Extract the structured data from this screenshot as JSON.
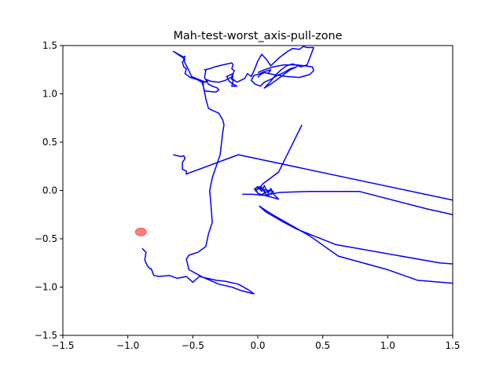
{
  "chart_data": {
    "type": "line",
    "title": "Mah-test-worst_axis-pull-zone",
    "xlabel": "",
    "ylabel": "",
    "xlim": [
      -1.5,
      1.5
    ],
    "ylim": [
      -1.5,
      1.5
    ],
    "xticks": [
      "−1.5",
      "−1.0",
      "−0.5",
      "0.0",
      "0.5",
      "1.0",
      "1.5"
    ],
    "yticks": [
      "−1.5",
      "−1.0",
      "−0.5",
      "0.0",
      "0.5",
      "1.0",
      "1.5"
    ],
    "xtick_values": [
      -1.5,
      -1.0,
      -0.5,
      0.0,
      0.5,
      1.0,
      1.5
    ],
    "ytick_values": [
      -1.5,
      -1.0,
      -0.5,
      0.0,
      0.5,
      1.0,
      1.5
    ],
    "grid": false,
    "series": [
      {
        "color": "#0000ff",
        "x": [
          -0.89,
          -0.86,
          -0.87,
          -0.85,
          -0.83,
          -0.82,
          -0.8,
          -0.76,
          -0.68,
          -0.62,
          -0.55,
          -0.5,
          -0.45,
          -0.32,
          -0.25,
          -0.15,
          -0.07,
          -0.03,
          -0.12,
          -0.2,
          -0.3,
          -0.42,
          -0.53,
          -0.55,
          -0.53,
          -0.46,
          -0.4,
          -0.38,
          -0.35,
          -0.36,
          -0.37,
          -0.35,
          -0.29,
          -0.27,
          -0.26,
          -0.27,
          -0.3,
          -0.35,
          -0.38,
          -0.4,
          -0.42,
          -0.43,
          -0.47,
          -0.52,
          -0.56,
          -0.55,
          -0.57,
          -0.58,
          -0.56,
          -0.65,
          -0.57,
          -0.56,
          -0.57,
          -0.56,
          -0.53,
          -0.51,
          -0.42,
          -0.41,
          -0.38,
          -0.4,
          -0.42,
          -0.42,
          -0.41,
          -0.34,
          -0.32,
          -0.3,
          -0.31,
          -0.35,
          -0.38,
          -0.41,
          -0.4,
          -0.41,
          -0.37,
          -0.33,
          -0.27,
          -0.2,
          -0.19,
          -0.2,
          -0.18,
          -0.19,
          -0.24,
          -0.23,
          -0.22,
          -0.19,
          -0.16,
          -0.2,
          -0.19,
          -0.2,
          -0.19,
          -0.2,
          -0.19,
          -0.19
        ],
        "y": [
          -0.6,
          -0.64,
          -0.72,
          -0.78,
          -0.81,
          -0.81,
          -0.88,
          -0.89,
          -0.88,
          -0.91,
          -0.89,
          -0.95,
          -0.89,
          -0.93,
          -0.94,
          -0.97,
          -1.03,
          -1.07,
          -1.04,
          -1.0,
          -0.97,
          -0.9,
          -0.82,
          -0.71,
          -0.67,
          -0.64,
          -0.58,
          -0.45,
          -0.33,
          -0.16,
          0.0,
          0.13,
          0.37,
          0.6,
          0.68,
          0.73,
          0.8,
          0.83,
          0.85,
          0.95,
          1.08,
          1.12,
          1.15,
          1.17,
          1.21,
          1.26,
          1.28,
          1.33,
          1.36,
          1.44,
          1.38,
          1.39,
          1.36,
          1.32,
          1.24,
          1.18,
          1.13,
          1.12,
          1.14,
          1.12,
          1.13,
          1.08,
          1.03,
          1.02,
          1.02,
          1.04,
          1.06,
          1.08,
          1.1,
          1.17,
          1.24,
          1.25,
          1.26,
          1.28,
          1.3,
          1.32,
          1.3,
          1.26,
          1.24,
          1.21,
          1.18,
          1.16,
          1.13,
          1.1,
          1.08,
          1.08,
          1.13,
          1.18,
          1.21,
          1.15,
          1.18,
          1.18
        ]
      },
      {
        "color": "#0000ff",
        "x": [
          -0.65,
          -0.59,
          -0.57,
          -0.56,
          -0.58,
          -0.58,
          -0.55,
          -0.55,
          -0.15,
          1.5
        ],
        "y": [
          0.37,
          0.35,
          0.36,
          0.33,
          0.29,
          0.22,
          0.2,
          0.17,
          0.37,
          -0.1
        ]
      },
      {
        "color": "#0000ff",
        "x": [
          -0.12,
          -0.04,
          0.05,
          0.17,
          0.4,
          0.78,
          1.3,
          1.5
        ],
        "y": [
          -0.04,
          -0.04,
          -0.05,
          -0.02,
          -0.01,
          -0.01,
          -0.19,
          -0.25
        ]
      },
      {
        "color": "#0000ff",
        "x": [
          0.01,
          0.04,
          0.16,
          0.34
        ],
        "y": [
          0.02,
          0.07,
          0.19,
          0.68
        ]
      },
      {
        "color": "#0000ff",
        "x": [
          -0.03,
          0.0,
          0.03,
          0.05,
          0.08,
          0.1,
          0.13,
          0.16,
          0.0,
          -0.02,
          0.02,
          0.06,
          0.1,
          0.02,
          -0.02,
          0.03,
          0.07,
          0.12,
          0.0
        ],
        "y": [
          0.01,
          0.04,
          -0.01,
          0.05,
          -0.03,
          0.02,
          -0.05,
          -0.09,
          -0.03,
          0.02,
          0.04,
          -0.02,
          0.01,
          -0.05,
          0.0,
          0.03,
          -0.06,
          -0.01,
          0.02
        ]
      },
      {
        "color": "#0000ff",
        "x": [
          0.01,
          0.06,
          0.2,
          0.3,
          0.6,
          1.4,
          1.5
        ],
        "y": [
          -0.16,
          -0.22,
          -0.33,
          -0.4,
          -0.56,
          -0.75,
          -0.76
        ]
      },
      {
        "color": "#0000ff",
        "x": [
          0.01,
          0.1,
          0.4,
          0.62,
          1.0,
          1.23,
          1.5
        ],
        "y": [
          -0.16,
          -0.24,
          -0.47,
          -0.68,
          -0.82,
          -0.93,
          -0.96
        ]
      },
      {
        "color": "#0000ff",
        "x": [
          -0.4,
          -0.36,
          -0.3,
          -0.25,
          -0.21,
          -0.16,
          -0.1,
          -0.08,
          -0.05,
          -0.02,
          0.0,
          0.03,
          0.07,
          0.1,
          0.13,
          0.17,
          0.2,
          0.23,
          0.27,
          0.32,
          0.35,
          0.38,
          0.43,
          0.38,
          0.33,
          0.27,
          0.22,
          0.18,
          0.14,
          0.1,
          0.05,
          0.1,
          0.15,
          0.2,
          0.25,
          0.3,
          0.25,
          0.2,
          0.15,
          0.1,
          0.05,
          0.02,
          -0.02,
          -0.05,
          -0.03,
          0.0,
          0.05,
          0.1,
          0.08
        ],
        "y": [
          1.15,
          1.13,
          1.12,
          1.14,
          1.17,
          1.12,
          1.16,
          1.21,
          1.18,
          1.27,
          1.34,
          1.41,
          1.35,
          1.29,
          1.33,
          1.38,
          1.41,
          1.44,
          1.47,
          1.46,
          1.49,
          1.48,
          1.48,
          1.3,
          1.28,
          1.31,
          1.29,
          1.25,
          1.2,
          1.13,
          1.06,
          1.1,
          1.15,
          1.2,
          1.25,
          1.28,
          1.26,
          1.22,
          1.19,
          1.15,
          1.12,
          1.08,
          1.1,
          1.14,
          1.19,
          1.2,
          1.23,
          1.25,
          1.21
        ]
      },
      {
        "color": "#0000ff",
        "x": [
          0.0,
          0.05,
          0.12,
          0.2,
          0.3,
          0.42,
          0.43,
          0.4,
          0.32,
          0.22,
          0.12,
          0.05,
          0.02,
          0.0
        ],
        "y": [
          1.22,
          1.25,
          1.28,
          1.3,
          1.3,
          1.28,
          1.24,
          1.2,
          1.17,
          1.18,
          1.2,
          1.22,
          1.2,
          1.17
        ]
      }
    ],
    "marker": {
      "x": -0.9,
      "y": -0.43,
      "color": "#ff0000"
    }
  }
}
